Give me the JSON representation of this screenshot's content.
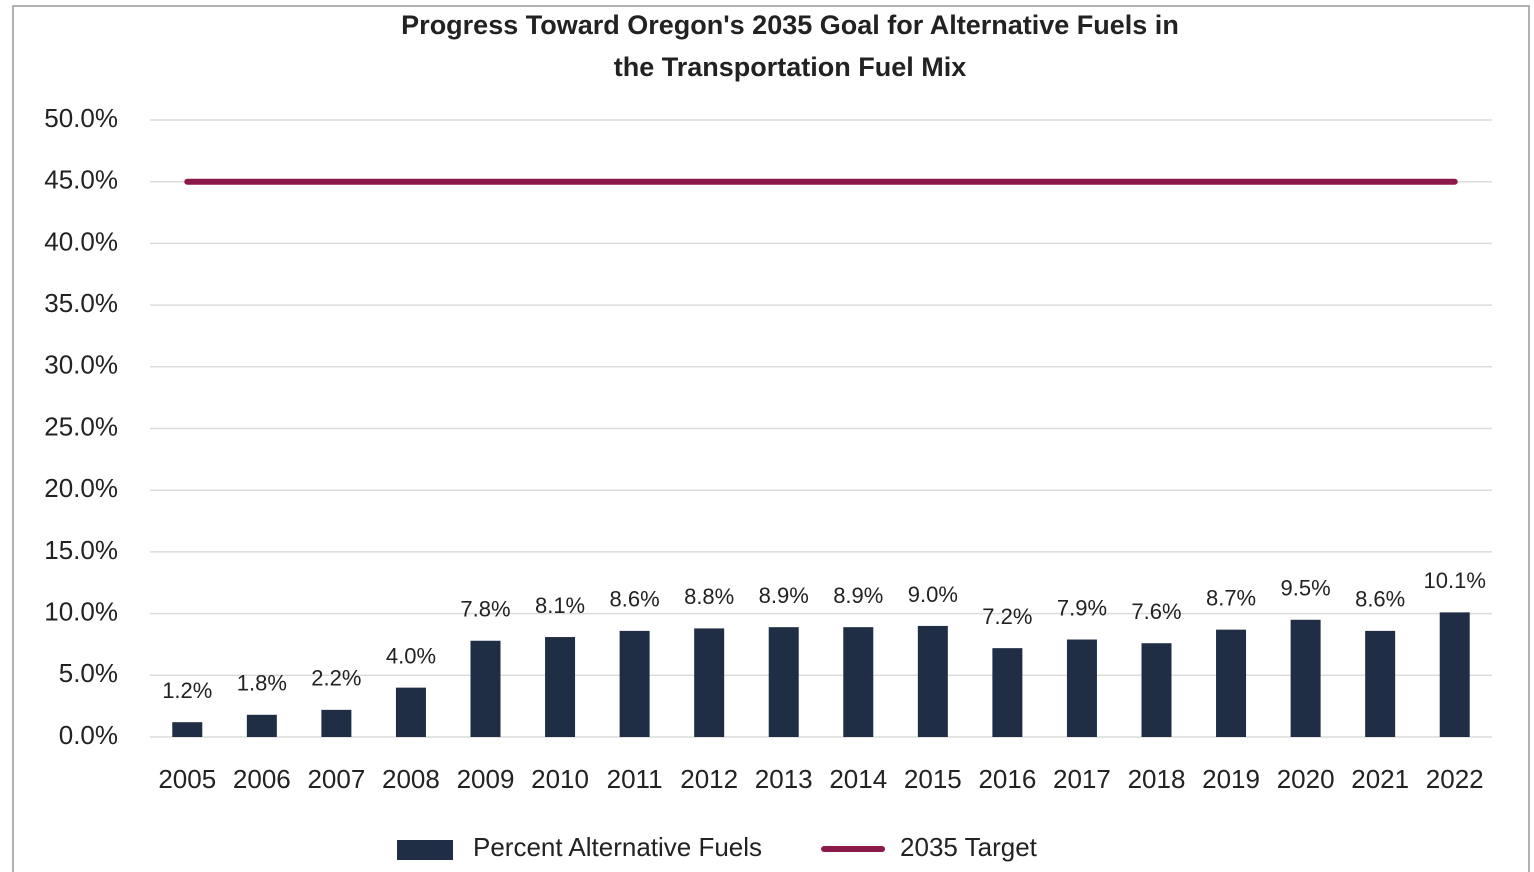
{
  "chart_data": {
    "type": "bar",
    "title": [
      "Progress Toward Oregon's 2035 Goal for Alternative Fuels in",
      "the Transportation Fuel Mix"
    ],
    "categories": [
      "2005",
      "2006",
      "2007",
      "2008",
      "2009",
      "2010",
      "2011",
      "2012",
      "2013",
      "2014",
      "2015",
      "2016",
      "2017",
      "2018",
      "2019",
      "2020",
      "2021",
      "2022"
    ],
    "series": [
      {
        "name": "Percent Alternative Fuels",
        "type": "bar",
        "color": "#1f2d45",
        "values": [
          1.2,
          1.8,
          2.2,
          4.0,
          7.8,
          8.1,
          8.6,
          8.8,
          8.9,
          8.9,
          9.0,
          7.2,
          7.9,
          7.6,
          8.7,
          9.5,
          8.6,
          10.1
        ],
        "value_labels": [
          "1.2%",
          "1.8%",
          "2.2%",
          "4.0%",
          "7.8%",
          "8.1%",
          "8.6%",
          "8.8%",
          "8.9%",
          "8.9%",
          "9.0%",
          "7.2%",
          "7.9%",
          "7.6%",
          "8.7%",
          "9.5%",
          "8.6%",
          "10.1%"
        ]
      },
      {
        "name": "2035 Target",
        "type": "line",
        "color": "#8b1a4a",
        "values": [
          45,
          45,
          45,
          45,
          45,
          45,
          45,
          45,
          45,
          45,
          45,
          45,
          45,
          45,
          45,
          45,
          45,
          45
        ]
      }
    ],
    "ylim": [
      0,
      50
    ],
    "yticks": [
      {
        "value": 0,
        "label": "0.0%"
      },
      {
        "value": 5,
        "label": "5.0%"
      },
      {
        "value": 10,
        "label": "10.0%"
      },
      {
        "value": 15,
        "label": "15.0%"
      },
      {
        "value": 20,
        "label": "20.0%"
      },
      {
        "value": 25,
        "label": "25.0%"
      },
      {
        "value": 30,
        "label": "30.0%"
      },
      {
        "value": 35,
        "label": "35.0%"
      },
      {
        "value": 40,
        "label": "40.0%"
      },
      {
        "value": 45,
        "label": "45.0%"
      },
      {
        "value": 50,
        "label": "50.0%"
      }
    ],
    "grid": true,
    "legend": "bottom"
  }
}
